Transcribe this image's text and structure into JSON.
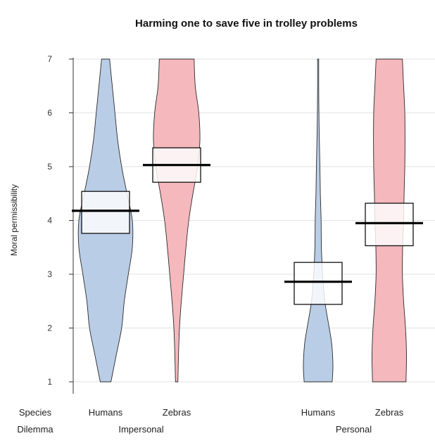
{
  "chart_data": {
    "type": "violin",
    "title": "Harming one to save five in trolley problems",
    "ylabel": "Moral permissibility",
    "xlabel": "",
    "ylim": [
      1,
      7
    ],
    "yticks": [
      "1",
      "2",
      "3",
      "4",
      "5",
      "6",
      "7"
    ],
    "grid": true,
    "row_labels": {
      "species": "Species",
      "dilemma": "Dilemma"
    },
    "dilemmas": [
      "Impersonal",
      "Personal"
    ],
    "colors": {
      "Humans": "#b9cde6",
      "Zebras": "#f4b8bd"
    },
    "groups": [
      {
        "dilemma": "Impersonal",
        "species": "Humans",
        "mean": 4.18,
        "ci": [
          3.76,
          4.54
        ],
        "density": [
          [
            1,
            0.2
          ],
          [
            1.5,
            0.4
          ],
          [
            2,
            0.6
          ],
          [
            2.5,
            0.7
          ],
          [
            3,
            0.85
          ],
          [
            3.5,
            1.0
          ],
          [
            4,
            1.0
          ],
          [
            4.5,
            0.8
          ],
          [
            5,
            0.6
          ],
          [
            5.5,
            0.45
          ],
          [
            6,
            0.35
          ],
          [
            6.5,
            0.25
          ],
          [
            7,
            0.15
          ]
        ]
      },
      {
        "dilemma": "Impersonal",
        "species": "Zebras",
        "mean": 5.03,
        "ci": [
          4.71,
          5.35
        ],
        "density": [
          [
            1,
            0.05
          ],
          [
            1.5,
            0.08
          ],
          [
            2,
            0.12
          ],
          [
            2.5,
            0.2
          ],
          [
            3,
            0.3
          ],
          [
            3.5,
            0.4
          ],
          [
            4,
            0.52
          ],
          [
            4.5,
            0.7
          ],
          [
            5,
            0.9
          ],
          [
            5.5,
            1.0
          ],
          [
            6,
            0.95
          ],
          [
            6.5,
            0.8
          ],
          [
            7,
            0.75
          ]
        ]
      },
      {
        "dilemma": "Personal",
        "species": "Humans",
        "mean": 2.86,
        "ci": [
          2.44,
          3.22
        ],
        "density": [
          [
            1,
            0.95
          ],
          [
            1.3,
            1.0
          ],
          [
            1.7,
            0.92
          ],
          [
            2,
            0.75
          ],
          [
            2.5,
            0.45
          ],
          [
            3,
            0.3
          ],
          [
            3.5,
            0.22
          ],
          [
            4,
            0.2
          ],
          [
            4.5,
            0.15
          ],
          [
            5,
            0.12
          ],
          [
            5.5,
            0.08
          ],
          [
            6,
            0.05
          ],
          [
            6.5,
            0.04
          ],
          [
            7,
            0.04
          ]
        ]
      },
      {
        "dilemma": "Personal",
        "species": "Zebras",
        "mean": 3.95,
        "ci": [
          3.53,
          4.32
        ],
        "density": [
          [
            1,
            0.7
          ],
          [
            1.5,
            0.72
          ],
          [
            2,
            0.68
          ],
          [
            2.5,
            0.6
          ],
          [
            3,
            0.55
          ],
          [
            3.5,
            0.56
          ],
          [
            4,
            0.6
          ],
          [
            4.5,
            0.62
          ],
          [
            5,
            0.65
          ],
          [
            5.5,
            0.66
          ],
          [
            6,
            0.65
          ],
          [
            6.5,
            0.6
          ],
          [
            7,
            0.55
          ]
        ]
      }
    ]
  }
}
